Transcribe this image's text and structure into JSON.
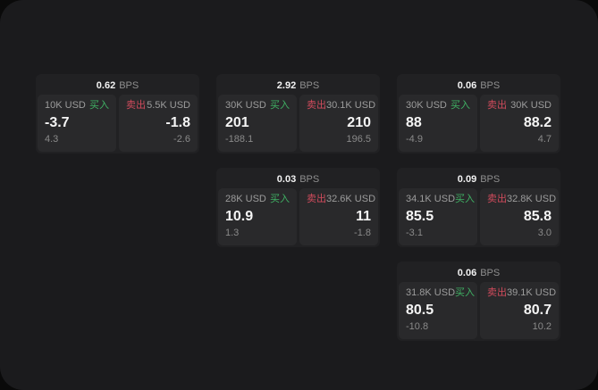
{
  "colors": {
    "panel_bg": "#1b1b1d",
    "card_bg": "#212123",
    "subpanel_bg": "#29292b",
    "buy": "#3fb264",
    "sell": "#d14b5c"
  },
  "labels": {
    "bps": "BPS",
    "buy": "买入",
    "sell": "卖出"
  },
  "cards": [
    {
      "bps": "0.62",
      "buy": {
        "amount": "10K USD",
        "value": "-3.7",
        "delta": "4.3"
      },
      "sell": {
        "amount": "5.5K USD",
        "value": "-1.8",
        "delta": "-2.6"
      }
    },
    {
      "bps": "2.92",
      "buy": {
        "amount": "30K USD",
        "value": "201",
        "delta": "-188.1"
      },
      "sell": {
        "amount": "30.1K USD",
        "value": "210",
        "delta": "196.5"
      }
    },
    {
      "bps": "0.06",
      "buy": {
        "amount": "30K USD",
        "value": "88",
        "delta": "-4.9"
      },
      "sell": {
        "amount": "30K USD",
        "value": "88.2",
        "delta": "4.7"
      }
    },
    {
      "bps": "0.03",
      "buy": {
        "amount": "28K USD",
        "value": "10.9",
        "delta": "1.3"
      },
      "sell": {
        "amount": "32.6K USD",
        "value": "11",
        "delta": "-1.8"
      }
    },
    {
      "bps": "0.09",
      "buy": {
        "amount": "34.1K USD",
        "value": "85.5",
        "delta": "-3.1"
      },
      "sell": {
        "amount": "32.8K USD",
        "value": "85.8",
        "delta": "3.0"
      }
    },
    {
      "bps": "0.06",
      "buy": {
        "amount": "31.8K USD",
        "value": "80.5",
        "delta": "-10.8"
      },
      "sell": {
        "amount": "39.1K USD",
        "value": "80.7",
        "delta": "10.2"
      }
    }
  ]
}
